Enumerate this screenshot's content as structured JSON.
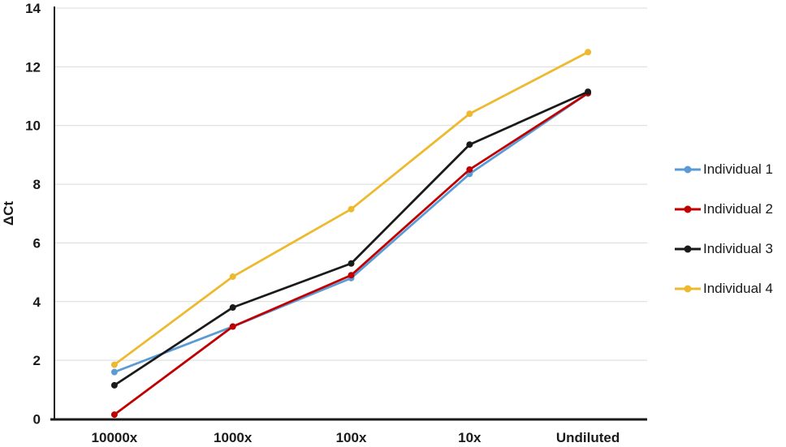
{
  "chart_data": {
    "type": "line",
    "title": "",
    "xlabel": "",
    "ylabel": "ΔCt",
    "categories": [
      "10000x",
      "1000x",
      "100x",
      "10x",
      "Undiluted"
    ],
    "series": [
      {
        "name": "Individual 1",
        "color": "#5B9BD5",
        "values": [
          1.6,
          3.15,
          4.8,
          8.35,
          11.1
        ]
      },
      {
        "name": "Individual 2",
        "color": "#C00000",
        "values": [
          0.15,
          3.15,
          4.9,
          8.5,
          11.1
        ]
      },
      {
        "name": "Individual 3",
        "color": "#1A1A1A",
        "values": [
          1.15,
          3.8,
          5.3,
          9.35,
          11.15
        ]
      },
      {
        "name": "Individual 4",
        "color": "#EDB92E",
        "values": [
          1.85,
          4.85,
          7.15,
          10.4,
          12.5
        ]
      }
    ],
    "ylim": [
      0,
      14
    ],
    "ytick_step": 2,
    "y_ticks": [
      "0",
      "2",
      "4",
      "6",
      "8",
      "10",
      "12",
      "14"
    ],
    "grid": true,
    "gridline_color": "#D9D9D9",
    "axis_color": "#1A1A1A",
    "legend_position": "right",
    "marker": "circle"
  }
}
